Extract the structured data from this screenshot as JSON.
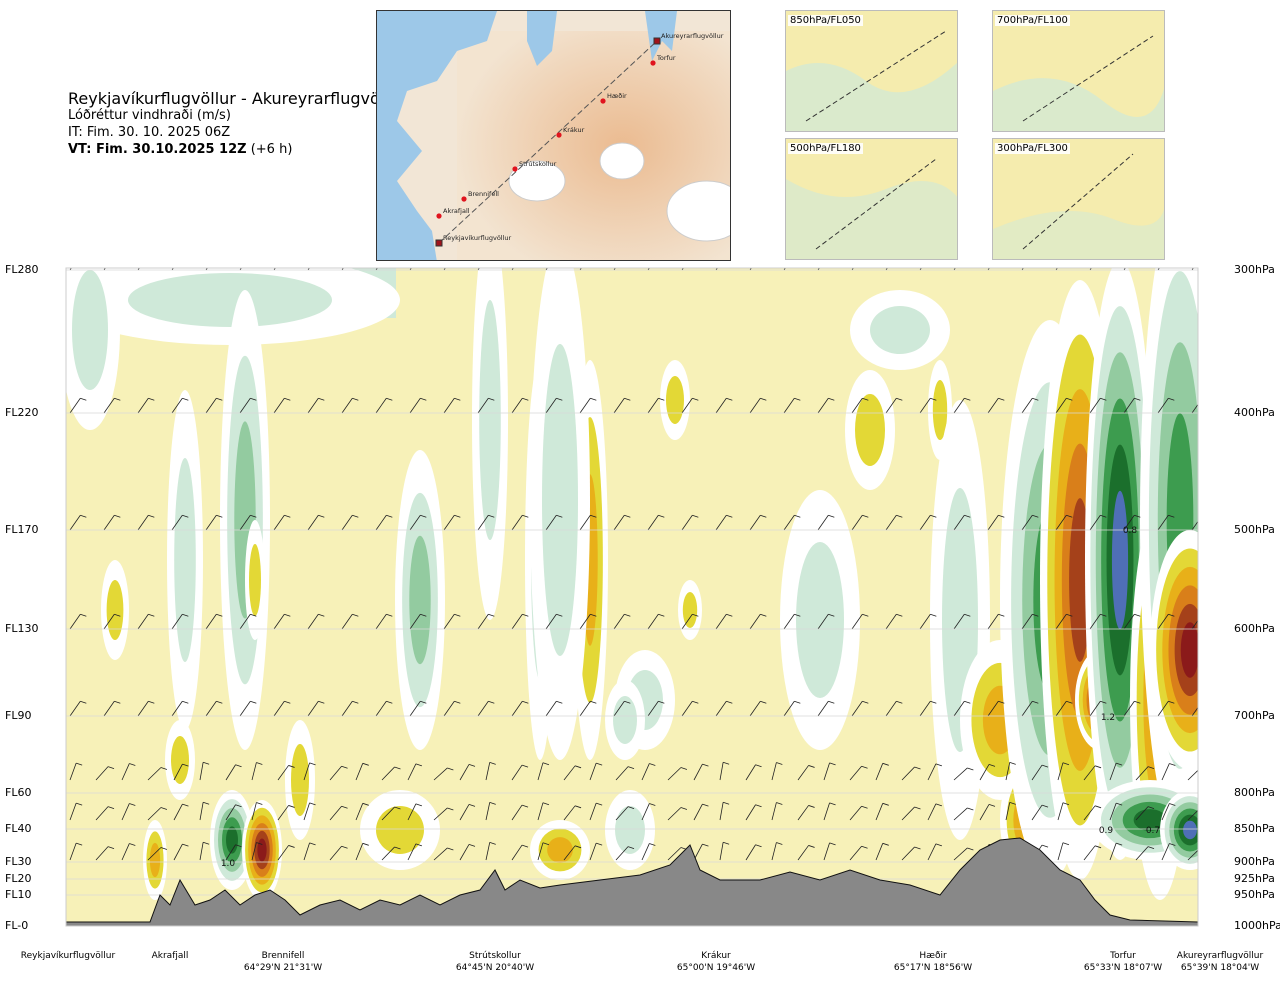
{
  "title": {
    "route": "Reykjavíkurflugvöllur - Akureyrarflugvöllur",
    "variable": "Lóðréttur vindhraði (m/s)",
    "issue_time": "IT: Fim. 30. 10. 2025 06Z",
    "valid_label": "VT: Fim. 30.10.2025 12Z",
    "valid_offset": "(+6 h)"
  },
  "map_waypoints": [
    "Reykjavíkurflugvöllur",
    "Akrafjall",
    "Brennifell",
    "Strútskollur",
    "Krákur",
    "Hæðir",
    "Torfur",
    "Akureyrarflugvöllur"
  ],
  "thumbnails": [
    "850hPa/FL050",
    "700hPa/FL100",
    "500hPa/FL180",
    "300hPa/FL300"
  ],
  "colors": {
    "strong_neg": "#8b1a1a",
    "neg_2": "#a5411a",
    "neg_3": "#d97f1a",
    "neg_4": "#e8b019",
    "neg_5": "#e3d836",
    "neutral": "#f7f1b8",
    "pos_1": "#ffffff",
    "pos_2": "#cfe9d9",
    "pos_3": "#93cba0",
    "pos_4": "#3d9c4f",
    "pos_5": "#1b6f2c",
    "pos_6": "#4f6fb6",
    "terrain": "#888888",
    "water": "#9dc8e8"
  },
  "flight_levels": [
    "FL280",
    "FL220",
    "FL170",
    "FL130",
    "FL90",
    "FL60",
    "FL40",
    "FL30",
    "FL20",
    "FL10",
    "FL-0"
  ],
  "pressure_levels": [
    "300hPa",
    "400hPa",
    "500hPa",
    "600hPa",
    "700hPa",
    "800hPa",
    "850hPa",
    "900hPa",
    "925hPa",
    "950hPa",
    "1000hPa"
  ],
  "places": [
    {
      "name": "Reykjavíkurflugvöllur",
      "coord": ""
    },
    {
      "name": "Akrafjall",
      "coord": ""
    },
    {
      "name": "Brennifell",
      "coord": "64°29'N 21°31'W"
    },
    {
      "name": "Strútskollur",
      "coord": "64°45'N 20°40'W"
    },
    {
      "name": "Krákur",
      "coord": "65°00'N 19°46'W"
    },
    {
      "name": "Hæðir",
      "coord": "65°17'N 18°56'W"
    },
    {
      "name": "Torfur",
      "coord": "65°33'N 18°07'W"
    },
    {
      "name": "Akureyrarflugvöllur",
      "coord": "65°39'N 18°04'W"
    }
  ],
  "chart_data": {
    "type": "heatmap",
    "xlabel": "",
    "ylabel": "",
    "y_levels_left": [
      "FL280",
      "FL220",
      "FL170",
      "FL130",
      "FL90",
      "FL60",
      "FL40",
      "FL30",
      "FL20",
      "FL10",
      "FL-0"
    ],
    "y_levels_right": [
      "300hPa",
      "400hPa",
      "500hPa",
      "600hPa",
      "700hPa",
      "800hPa",
      "850hPa",
      "900hPa",
      "925hPa",
      "950hPa",
      "1000hPa"
    ],
    "x_locations": [
      "Reykjavíkurflugvöllur",
      "Akrafjall",
      "Brennifell",
      "Strútskollur",
      "Krákur",
      "Hæðir",
      "Torfur",
      "Akureyrarflugvöllur"
    ],
    "annotations": [
      "1.0",
      "0.8",
      "1.2",
      "0.9",
      "0.7"
    ],
    "grid": true,
    "legend": "none"
  }
}
